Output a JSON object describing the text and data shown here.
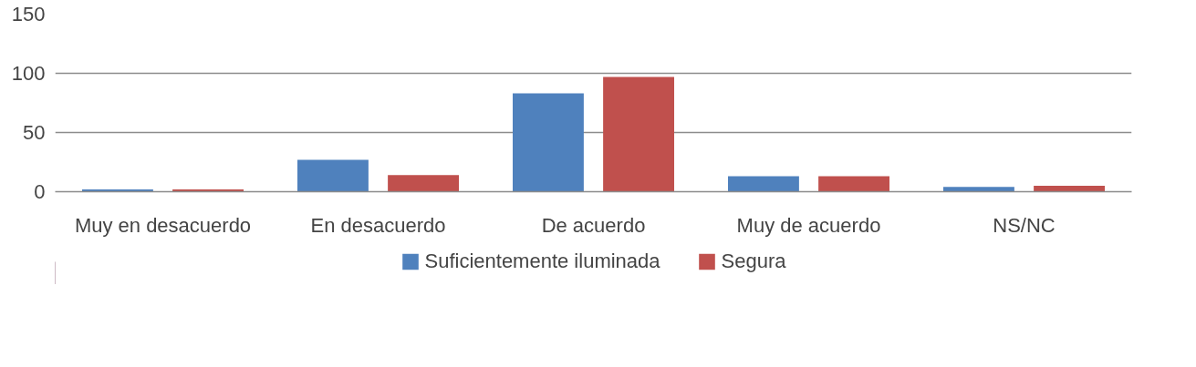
{
  "chart_data": {
    "type": "bar",
    "categories": [
      "Muy en desacuerdo",
      "En desacuerdo",
      "De acuerdo",
      "Muy de acuerdo",
      "NS/NC"
    ],
    "series": [
      {
        "name": "Suficientemente iluminada",
        "color": "#4f81bd",
        "values": [
          2,
          27,
          83,
          13,
          4
        ]
      },
      {
        "name": "Segura",
        "color": "#c0504d",
        "values": [
          2,
          14,
          97,
          13,
          5
        ]
      }
    ],
    "ylim": [
      0,
      150
    ],
    "yticks": [
      0,
      50,
      100,
      150
    ],
    "grid": "y",
    "legend": "bottom"
  }
}
